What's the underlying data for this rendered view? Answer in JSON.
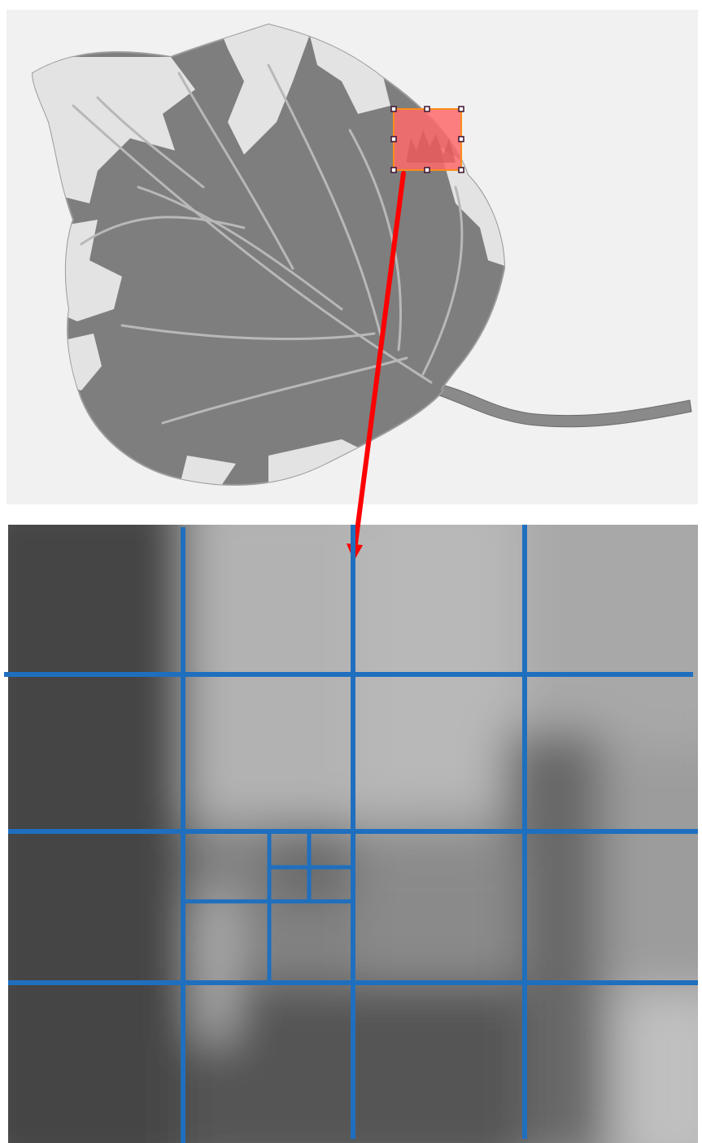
{
  "photo": {
    "subject": "leaf-photo",
    "background_color": "#f0f0f0",
    "leaf_color": "#7e7e7e",
    "variegation_color": "#e4e4e4"
  },
  "selection": {
    "fill_color": "#ff6a6a",
    "border_color": "#ff8c1a",
    "handle_color": "#3a1030",
    "handle_count": 8
  },
  "pointer_arrow": {
    "color": "#ff0000"
  },
  "zoom_view": {
    "grid_color": "#1f6fbf",
    "grid_levels": [
      "level-1",
      "level-2",
      "level-3"
    ]
  }
}
